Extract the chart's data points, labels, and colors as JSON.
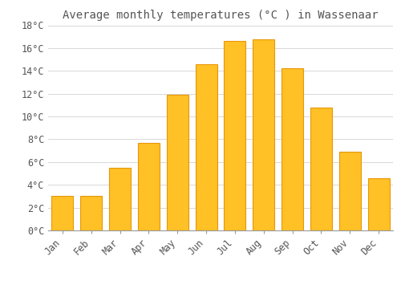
{
  "title": "Average monthly temperatures (°C ) in Wassenaar",
  "months": [
    "Jan",
    "Feb",
    "Mar",
    "Apr",
    "May",
    "Jun",
    "Jul",
    "Aug",
    "Sep",
    "Oct",
    "Nov",
    "Dec"
  ],
  "temperatures": [
    3.0,
    3.0,
    5.5,
    7.7,
    11.9,
    14.6,
    16.6,
    16.8,
    14.2,
    10.8,
    6.9,
    4.6
  ],
  "bar_color": "#FFC125",
  "bar_edge_color": "#E8960A",
  "background_color": "#FFFFFF",
  "grid_color": "#D8D8D8",
  "text_color": "#555555",
  "ylim": [
    0,
    18
  ],
  "yticks": [
    0,
    2,
    4,
    6,
    8,
    10,
    12,
    14,
    16,
    18
  ],
  "title_fontsize": 10,
  "tick_fontsize": 8.5,
  "font_family": "monospace"
}
